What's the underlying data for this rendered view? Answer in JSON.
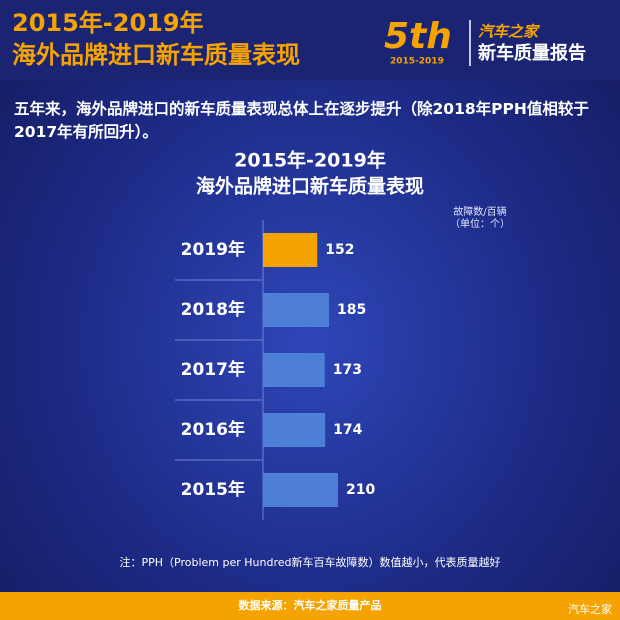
{
  "header": {
    "title_line1": "2015年-2019年",
    "title_line2": "海外品牌进口新车质量表现",
    "logo_number": "5th",
    "logo_years": "2015-2019",
    "logo_brand": "汽车之家",
    "logo_title": "新车质量报告"
  },
  "intro": "五年来，海外品牌进口的新车质量表现总体上在逐步提升（除2018年PPH值相较于2017年有所回升）。",
  "chart_data": {
    "type": "bar",
    "orientation": "horizontal",
    "title_lines": [
      "2015年-2019年",
      "海外品牌进口新车质量表现"
    ],
    "unit_lines": [
      "故障数/百辆",
      "（单位：个）"
    ],
    "categories": [
      "2019年",
      "2018年",
      "2017年",
      "2016年",
      "2015年"
    ],
    "values": [
      152,
      185,
      173,
      174,
      210
    ],
    "colors": [
      "#f5a300",
      "#4d7fd6",
      "#4d7fd6",
      "#4d7fd6",
      "#4d7fd6"
    ]
  },
  "note": "注：PPH（Problem per Hundred新车百车故障数）数值越小，代表质量越好",
  "footer": {
    "source": "数据来源：汽车之家质量产品",
    "watermark": "汽车之家"
  }
}
